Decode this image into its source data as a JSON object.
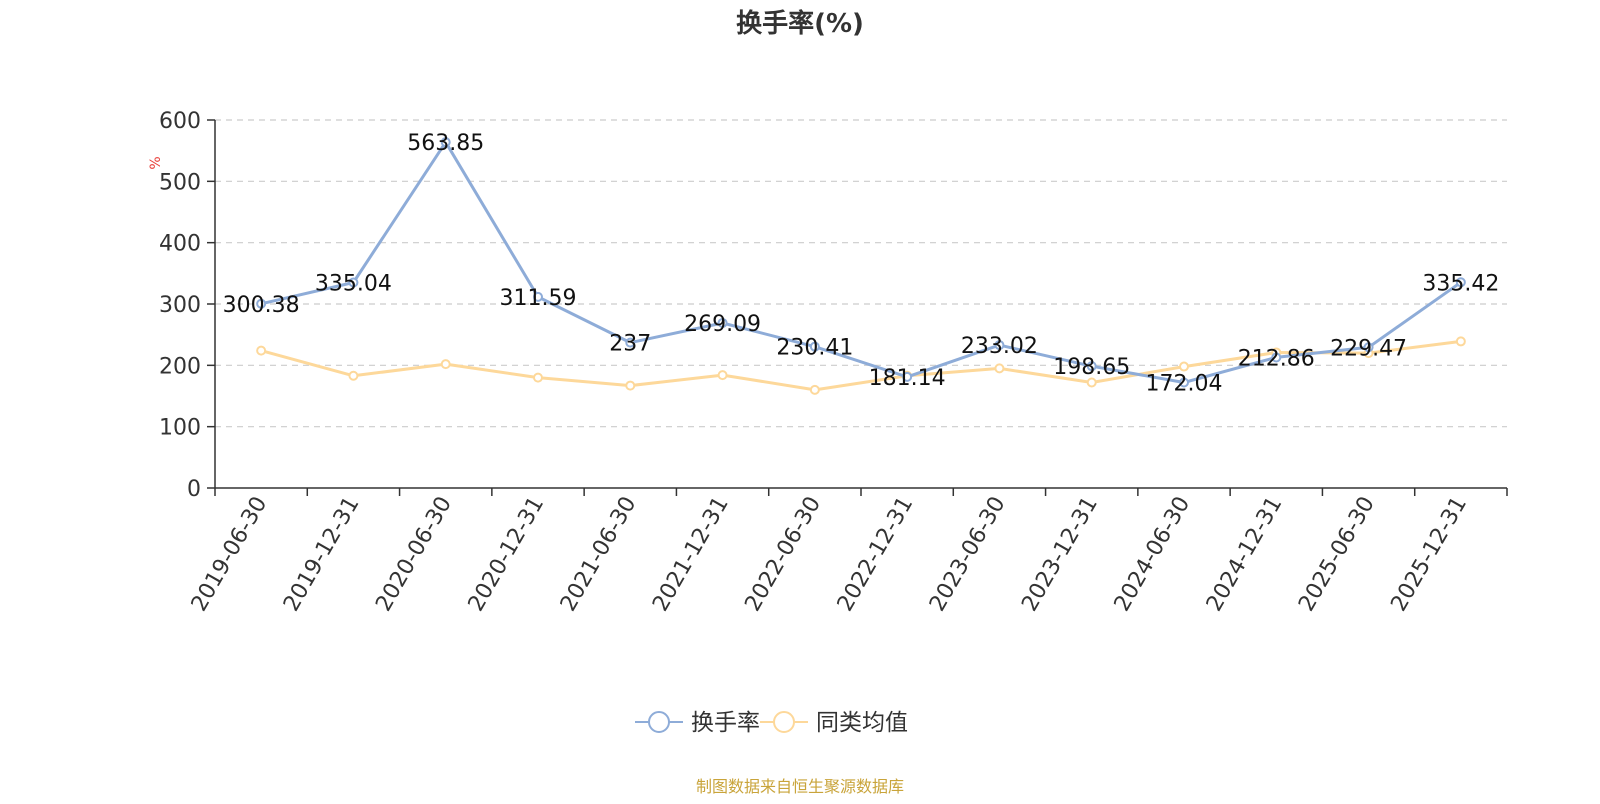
{
  "chart_data": {
    "type": "line",
    "title": "换手率(%)",
    "ylabel": "%",
    "xlabel": "",
    "ylim": [
      0,
      600
    ],
    "yticks": [
      0,
      100,
      200,
      300,
      400,
      500,
      600
    ],
    "grid": true,
    "legend_position": "bottom",
    "categories": [
      "2019-06-30",
      "2019-12-31",
      "2020-06-30",
      "2020-12-31",
      "2021-06-30",
      "2021-12-31",
      "2022-06-30",
      "2022-12-31",
      "2023-06-30",
      "2023-12-31",
      "2024-06-30",
      "2024-12-31",
      "2025-06-30",
      "2025-12-31"
    ],
    "series": [
      {
        "name": "换手率",
        "color": "#8eacd8",
        "show_labels": true,
        "labels": [
          "300.38",
          "335.04",
          "563.85",
          "311.59",
          "237",
          "269.09",
          "230.41",
          "181.14",
          "233.02",
          "198.65",
          "172.04",
          "212.86",
          "229.47",
          "335.42"
        ],
        "values": [
          300.38,
          335.04,
          563.85,
          311.59,
          237,
          269.09,
          230.41,
          181.14,
          233.02,
          198.65,
          172.04,
          212.86,
          229.47,
          335.42
        ]
      },
      {
        "name": "同类均值",
        "color": "#fdd89a",
        "show_labels": false,
        "values": [
          224,
          183,
          202,
          180,
          167,
          184,
          160,
          183,
          195,
          172,
          198,
          221,
          220,
          239
        ]
      }
    ]
  },
  "source_note": "制图数据来自恒生聚源数据库",
  "colors": {
    "axis": "#333333",
    "grid": "#cccccc",
    "ylabel": "#e8413b",
    "source": "#c9a43a"
  }
}
